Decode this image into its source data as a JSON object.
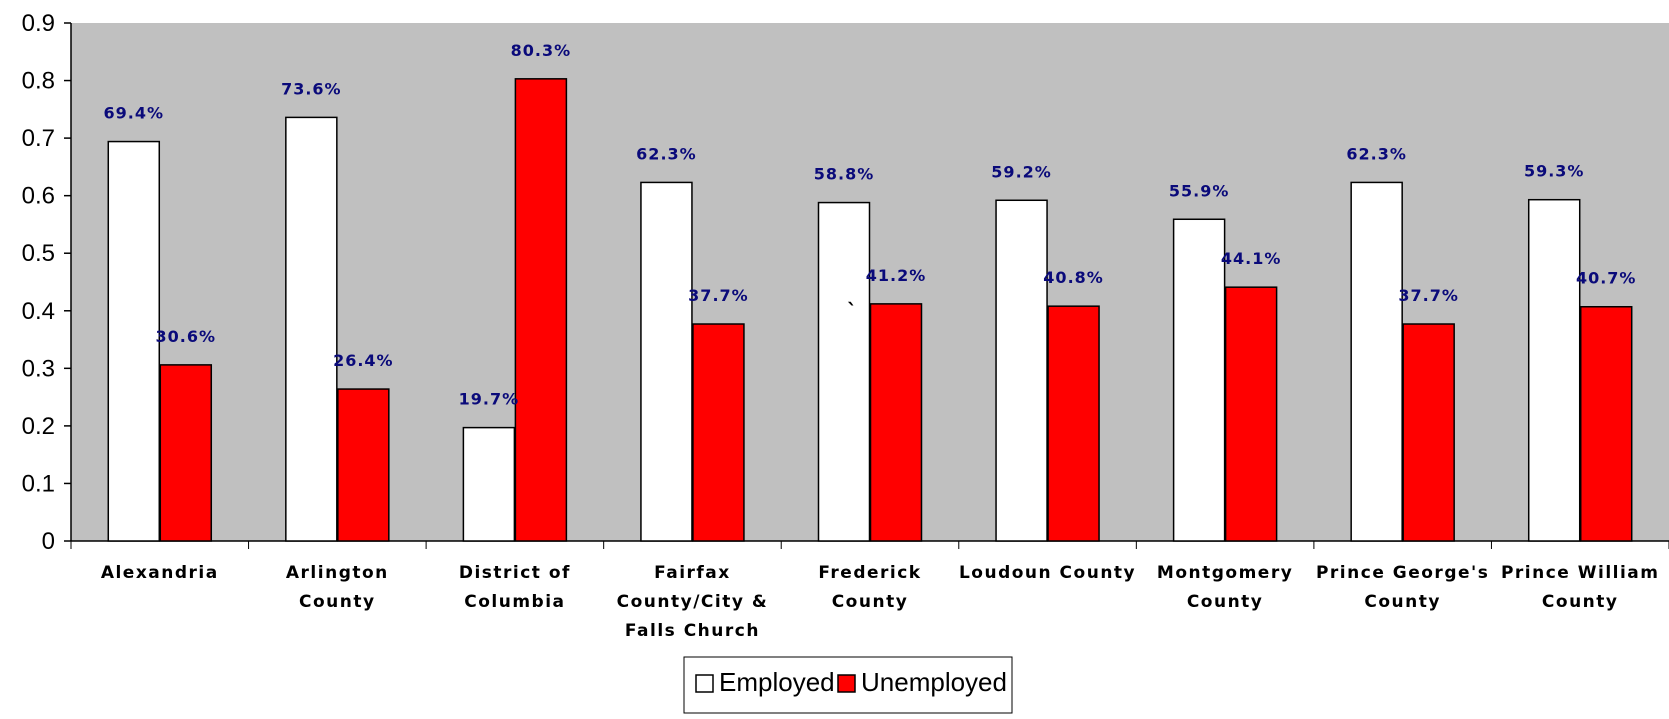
{
  "chart_data": {
    "type": "bar",
    "categories": [
      [
        "Alexandria"
      ],
      [
        "Arlington",
        "County"
      ],
      [
        "District of",
        "Columbia"
      ],
      [
        "Fairfax",
        "County/City &",
        "Falls Church"
      ],
      [
        "Frederick",
        "County"
      ],
      [
        "Loudoun County"
      ],
      [
        "Montgomery",
        "County"
      ],
      [
        "Prince George's",
        "County"
      ],
      [
        "Prince William",
        "County"
      ]
    ],
    "series": [
      {
        "name": "Employed",
        "color": "#ffffff",
        "values": [
          0.694,
          0.736,
          0.197,
          0.623,
          0.588,
          0.592,
          0.559,
          0.623,
          0.593
        ],
        "labels": [
          "69.4%",
          "73.6%",
          "19.7%",
          "62.3%",
          "58.8%",
          "59.2%",
          "55.9%",
          "62.3%",
          "59.3%"
        ]
      },
      {
        "name": "Unemployed",
        "color": "#ff0000",
        "values": [
          0.306,
          0.264,
          0.803,
          0.377,
          0.412,
          0.408,
          0.441,
          0.377,
          0.407
        ],
        "labels": [
          "30.6%",
          "26.4%",
          "80.3%",
          "37.7%",
          "41.2%",
          "40.8%",
          "44.1%",
          "37.7%",
          "40.7%"
        ]
      }
    ],
    "yticks": [
      "0",
      "0.1",
      "0.2",
      "0.3",
      "0.4",
      "0.5",
      "0.6",
      "0.7",
      "0.8",
      "0.9"
    ],
    "ylim": [
      0,
      0.9
    ],
    "annotation": "`",
    "plot_background": "#c0c0c0",
    "grid": false,
    "legend_position": "bottom",
    "title": "",
    "xlabel": "",
    "ylabel": ""
  }
}
